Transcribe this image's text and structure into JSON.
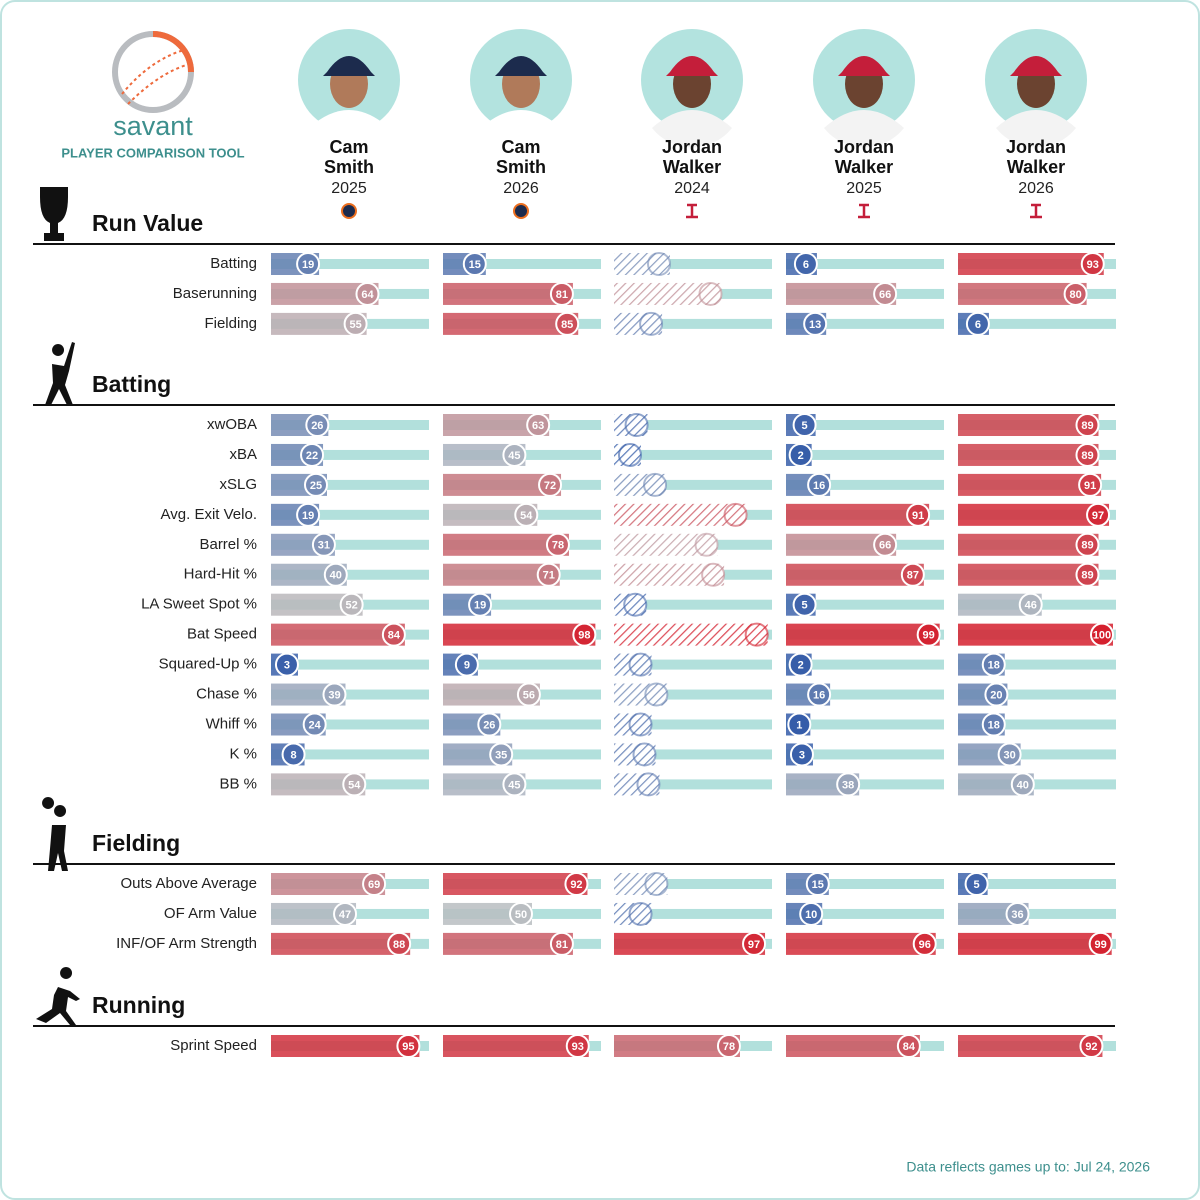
{
  "header": {
    "logo": "savant",
    "subtitle": "PLAYER COMPARISON TOOL"
  },
  "players": [
    {
      "first": "Cam",
      "last": "Smith",
      "year": "2025",
      "team": "HOU"
    },
    {
      "first": "Cam",
      "last": "Smith",
      "year": "2026",
      "team": "HOU"
    },
    {
      "first": "Jordan",
      "last": "Walker",
      "year": "2024",
      "team": "STL"
    },
    {
      "first": "Jordan",
      "last": "Walker",
      "year": "2025",
      "team": "STL"
    },
    {
      "first": "Jordan",
      "last": "Walker",
      "year": "2026",
      "team": "STL"
    }
  ],
  "sections": [
    {
      "title": "Run Value",
      "rows": [
        {
          "label": "Batting",
          "values": [
            19,
            15,
            25,
            6,
            93
          ],
          "hatched": [
            false,
            false,
            true,
            false,
            false
          ]
        },
        {
          "label": "Baserunning",
          "values": [
            64,
            81,
            64,
            66,
            80
          ],
          "hatched": [
            false,
            false,
            true,
            false,
            false
          ]
        },
        {
          "label": "Fielding",
          "values": [
            55,
            85,
            19,
            13,
            6
          ],
          "hatched": [
            false,
            false,
            true,
            false,
            false
          ]
        }
      ]
    },
    {
      "title": "Batting",
      "rows": [
        {
          "label": "xwOBA",
          "values": [
            26,
            63,
            8,
            5,
            89
          ],
          "hatched": [
            false,
            false,
            true,
            false,
            false
          ]
        },
        {
          "label": "xBA",
          "values": [
            22,
            45,
            3,
            2,
            89
          ],
          "hatched": [
            false,
            false,
            true,
            false,
            false
          ]
        },
        {
          "label": "xSLG",
          "values": [
            25,
            72,
            22,
            16,
            91
          ],
          "hatched": [
            false,
            false,
            true,
            false,
            false
          ]
        },
        {
          "label": "Avg. Exit Velo.",
          "values": [
            19,
            54,
            83,
            91,
            97
          ],
          "hatched": [
            false,
            false,
            true,
            false,
            false
          ]
        },
        {
          "label": "Barrel %",
          "values": [
            31,
            78,
            61,
            66,
            89
          ],
          "hatched": [
            false,
            false,
            true,
            false,
            false
          ]
        },
        {
          "label": "Hard-Hit %",
          "values": [
            40,
            71,
            66,
            87,
            89
          ],
          "hatched": [
            false,
            false,
            true,
            false,
            false
          ]
        },
        {
          "label": "LA Sweet Spot %",
          "values": [
            52,
            19,
            7,
            5,
            46
          ],
          "hatched": [
            false,
            false,
            true,
            false,
            false
          ]
        },
        {
          "label": "Bat Speed",
          "values": [
            84,
            98,
            99,
            99,
            100
          ],
          "hatched": [
            false,
            false,
            true,
            false,
            false
          ]
        },
        {
          "label": "Squared-Up %",
          "values": [
            3,
            9,
            11,
            2,
            18
          ],
          "hatched": [
            false,
            false,
            true,
            false,
            false
          ]
        },
        {
          "label": "Chase %",
          "values": [
            39,
            56,
            23,
            16,
            20
          ],
          "hatched": [
            false,
            false,
            true,
            false,
            false
          ]
        },
        {
          "label": "Whiff %",
          "values": [
            24,
            26,
            11,
            1,
            18
          ],
          "hatched": [
            false,
            false,
            true,
            false,
            false
          ]
        },
        {
          "label": "K %",
          "values": [
            8,
            35,
            14,
            3,
            30
          ],
          "hatched": [
            false,
            false,
            true,
            false,
            false
          ]
        },
        {
          "label": "BB %",
          "values": [
            54,
            45,
            17,
            38,
            40
          ],
          "hatched": [
            false,
            false,
            true,
            false,
            false
          ]
        }
      ]
    },
    {
      "title": "Fielding",
      "rows": [
        {
          "label": "Outs Above Average",
          "values": [
            69,
            92,
            23,
            15,
            5
          ],
          "hatched": [
            false,
            false,
            true,
            false,
            false
          ]
        },
        {
          "label": "OF Arm Value",
          "values": [
            47,
            50,
            11,
            10,
            36
          ],
          "hatched": [
            false,
            false,
            true,
            false,
            false
          ]
        },
        {
          "label": "INF/OF Arm Strength",
          "values": [
            88,
            81,
            97,
            96,
            99
          ],
          "hatched": [
            false,
            false,
            false,
            false,
            false
          ]
        }
      ]
    },
    {
      "title": "Running",
      "rows": [
        {
          "label": "Sprint Speed",
          "values": [
            95,
            93,
            78,
            84,
            92
          ],
          "hatched": [
            false,
            false,
            false,
            false,
            false
          ]
        }
      ]
    }
  ],
  "footer": "Data reflects games up to: Jul 24, 2026"
}
